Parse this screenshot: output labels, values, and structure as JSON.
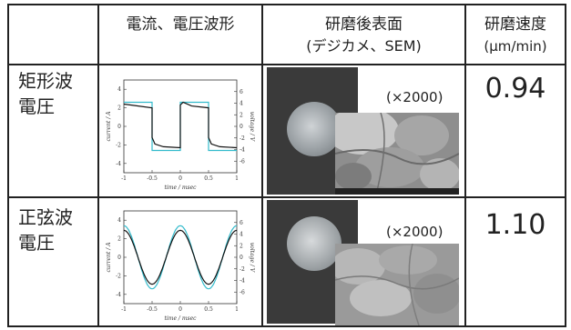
{
  "header": {
    "col1": "電流、電圧波形",
    "col2_line1": "研磨後表面",
    "col2_line2": "(デジカメ、SEM)",
    "col3_line1": "研磨速度",
    "col3_line2": "(μm/min)"
  },
  "rows": [
    {
      "label_line1": "矩形波",
      "label_line2": "電圧",
      "magnification": "(×2000)",
      "rate": "0.94"
    },
    {
      "label_line1": "正弦波",
      "label_line2": "電圧",
      "magnification": "(×2000)",
      "rate": "1.10"
    }
  ],
  "chart_data": [
    {
      "type": "line",
      "xlabel": "time / msec",
      "ylabel_left": "current / A",
      "ylabel_right": "voltage / V",
      "xlim": [
        -1,
        1
      ],
      "ylim_left": [
        -5,
        5
      ],
      "ylim_right": [
        -8,
        8
      ],
      "xticks": [
        "-1",
        "-0.5",
        "0",
        "0.5",
        "1"
      ],
      "yticks_left": [
        "-4",
        "-2",
        "0",
        "2",
        "4"
      ],
      "yticks_right": [
        "-6",
        "-4",
        "-2",
        "0",
        "2",
        "4",
        "6"
      ],
      "series": [
        {
          "color": "#111111",
          "x": [
            -1,
            -0.5,
            -0.5,
            -0.45,
            -0.3,
            0,
            0,
            0.05,
            0.2,
            0.5,
            0.5,
            0.55,
            0.7,
            1
          ],
          "y": [
            2.4,
            2.0,
            -1.2,
            -1.9,
            -2.2,
            -2.3,
            2.3,
            2.6,
            2.2,
            2.0,
            -1.2,
            -1.9,
            -2.2,
            -2.3
          ]
        },
        {
          "color": "#33bbcc",
          "x": [
            -1,
            -0.5,
            -0.5,
            0,
            0,
            0.5,
            0.5,
            1
          ],
          "y": [
            2.6,
            2.6,
            -2.6,
            -2.6,
            2.6,
            2.6,
            -2.6,
            -2.6
          ]
        }
      ]
    },
    {
      "type": "line",
      "xlabel": "time / msec",
      "ylabel_left": "current / A",
      "ylabel_right": "voltage / V",
      "xlim": [
        -1,
        1
      ],
      "ylim_left": [
        -5,
        5
      ],
      "ylim_right": [
        -8,
        8
      ],
      "xticks": [
        "-1",
        "-0.5",
        "0",
        "0.5",
        "1"
      ],
      "yticks_left": [
        "-4",
        "-2",
        "0",
        "2",
        "4"
      ],
      "yticks_right": [
        "-6",
        "-4",
        "-2",
        "0",
        "2",
        "4",
        "6"
      ],
      "series": [
        {
          "color": "#111111",
          "function": "sine",
          "amplitude": 2.9,
          "period": 1.0,
          "phase": 0.25
        },
        {
          "color": "#33bbcc",
          "function": "sine",
          "amplitude": 3.4,
          "period": 1.0,
          "phase": 0.25
        }
      ]
    }
  ],
  "colors": {
    "border": "#222222",
    "voltage_trace": "#33bbcc",
    "current_trace": "#111111",
    "dark_photo_bg": "#3a3a3a"
  }
}
